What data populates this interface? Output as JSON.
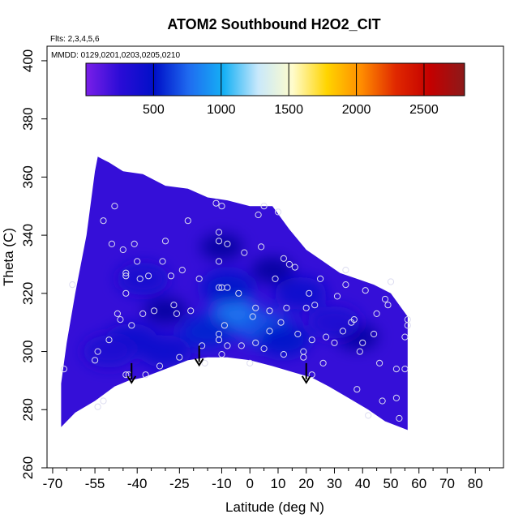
{
  "chart_data": {
    "type": "heatmap",
    "title": "ATOM2 Southbound H2O2_CIT",
    "flights_label": "Flts: 2,3,4,5,6",
    "mmdd_label": "MMDD: 0129,0201,0203,0205,0210",
    "xlabel": "Latitude (deg N)",
    "ylabel": "Theta (C)",
    "xlim": [
      -72,
      90
    ],
    "ylim": [
      260,
      405
    ],
    "x_ticks": [
      -70,
      -55,
      -40,
      -25,
      -10,
      0,
      10,
      20,
      30,
      40,
      50,
      60,
      70,
      80
    ],
    "x_minor_ticks": [
      -65,
      -60,
      -50,
      -45,
      -35,
      -30,
      -20,
      -15,
      -5,
      5,
      15,
      25,
      35,
      45,
      55,
      65,
      75,
      85
    ],
    "y_ticks": [
      260,
      280,
      300,
      320,
      340,
      360,
      380,
      400
    ],
    "colorbar": {
      "min": 0,
      "max": 2800,
      "ticks": [
        500,
        1000,
        1500,
        2000,
        2500
      ],
      "colors": [
        "#7a1fe8",
        "#2a0cd6",
        "#0010c8",
        "#1f6cf0",
        "#15b0f5",
        "#c8e8fb",
        "#fffccc",
        "#ffd400",
        "#ff8c00",
        "#e02800",
        "#c40000",
        "#8c1a1a"
      ]
    },
    "field": {
      "lower_boundary": [
        [
          -67,
          274
        ],
        [
          -62,
          279
        ],
        [
          -55,
          283
        ],
        [
          -48,
          288
        ],
        [
          -43,
          290
        ],
        [
          -38,
          291
        ],
        [
          -30,
          294
        ],
        [
          -22,
          297
        ],
        [
          -15,
          298
        ],
        [
          -8,
          298
        ],
        [
          0,
          297
        ],
        [
          8,
          295
        ],
        [
          15,
          293
        ],
        [
          22,
          291
        ],
        [
          28,
          288
        ],
        [
          35,
          284
        ],
        [
          42,
          280
        ],
        [
          48,
          276
        ],
        [
          56,
          273
        ]
      ],
      "upper_boundary": [
        [
          -67,
          289
        ],
        [
          -65,
          303
        ],
        [
          -62,
          320
        ],
        [
          -58,
          340
        ],
        [
          -55,
          362
        ],
        [
          -54,
          367
        ],
        [
          -50,
          365
        ],
        [
          -45,
          362
        ],
        [
          -38,
          361
        ],
        [
          -30,
          357
        ],
        [
          -22,
          356
        ],
        [
          -15,
          353
        ],
        [
          -8,
          352
        ],
        [
          0,
          350
        ],
        [
          8,
          350
        ],
        [
          14,
          342
        ],
        [
          20,
          335
        ],
        [
          26,
          331
        ],
        [
          32,
          327
        ],
        [
          38,
          325
        ],
        [
          44,
          323
        ],
        [
          50,
          320
        ],
        [
          56,
          312
        ]
      ],
      "background_value": 220,
      "features": [
        {
          "lat": -5,
          "theta": 312,
          "value": 820
        },
        {
          "lat": 5,
          "theta": 308,
          "value": 700
        },
        {
          "lat": -15,
          "theta": 307,
          "value": 560
        },
        {
          "lat": -8,
          "theta": 322,
          "value": 520
        },
        {
          "lat": 12,
          "theta": 304,
          "value": 520
        },
        {
          "lat": -30,
          "theta": 300,
          "value": 430
        },
        {
          "lat": -42,
          "theta": 304,
          "value": 420
        },
        {
          "lat": -38,
          "theta": 325,
          "value": 380
        },
        {
          "lat": 30,
          "theta": 310,
          "value": 330
        },
        {
          "lat": 18,
          "theta": 320,
          "value": 420
        },
        {
          "lat": -50,
          "theta": 300,
          "value": 340
        }
      ],
      "dark_spots": [
        {
          "lat": 38,
          "theta": 305
        },
        {
          "lat": -10,
          "theta": 336
        },
        {
          "lat": -30,
          "theta": 314
        },
        {
          "lat": 8,
          "theta": 328
        }
      ]
    },
    "samples": [
      [
        -66,
        294
      ],
      [
        -63,
        323
      ],
      [
        -55,
        297
      ],
      [
        -54,
        300
      ],
      [
        -54,
        281
      ],
      [
        -52,
        283
      ],
      [
        -52,
        345
      ],
      [
        -50,
        304
      ],
      [
        -49,
        337
      ],
      [
        -48,
        350
      ],
      [
        -47,
        313
      ],
      [
        -46,
        311
      ],
      [
        -45,
        335
      ],
      [
        -44,
        292
      ],
      [
        -44,
        326
      ],
      [
        -44,
        327
      ],
      [
        -44,
        320
      ],
      [
        -43,
        292
      ],
      [
        -42,
        309
      ],
      [
        -41,
        337
      ],
      [
        -40,
        331
      ],
      [
        -39,
        325
      ],
      [
        -38,
        313
      ],
      [
        -37,
        292
      ],
      [
        -36,
        326
      ],
      [
        -34,
        314
      ],
      [
        -32,
        295
      ],
      [
        -31,
        331
      ],
      [
        -30,
        338
      ],
      [
        -28,
        326
      ],
      [
        -27,
        316
      ],
      [
        -26,
        313
      ],
      [
        -25,
        298
      ],
      [
        -24,
        328
      ],
      [
        -22,
        345
      ],
      [
        -21,
        314
      ],
      [
        -18,
        325
      ],
      [
        -17,
        302
      ],
      [
        -16,
        296
      ],
      [
        -12,
        351
      ],
      [
        -11,
        306
      ],
      [
        -11,
        304
      ],
      [
        -11,
        322
      ],
      [
        -11,
        331
      ],
      [
        -11,
        338
      ],
      [
        -11,
        341
      ],
      [
        -10,
        350
      ],
      [
        -10,
        322
      ],
      [
        -10,
        299
      ],
      [
        -9,
        309
      ],
      [
        -8,
        302
      ],
      [
        -8,
        322
      ],
      [
        -8,
        337
      ],
      [
        -4,
        320
      ],
      [
        -3,
        302
      ],
      [
        -2,
        334
      ],
      [
        0,
        296
      ],
      [
        1,
        312
      ],
      [
        2,
        315
      ],
      [
        2,
        303
      ],
      [
        3,
        347
      ],
      [
        4,
        336
      ],
      [
        5,
        350
      ],
      [
        5,
        301
      ],
      [
        7,
        307
      ],
      [
        7,
        314
      ],
      [
        9,
        325
      ],
      [
        10,
        348
      ],
      [
        11,
        310
      ],
      [
        12,
        332
      ],
      [
        12,
        299
      ],
      [
        13,
        315
      ],
      [
        14,
        330
      ],
      [
        16,
        329
      ],
      [
        17,
        306
      ],
      [
        19,
        300
      ],
      [
        19,
        298
      ],
      [
        20,
        315
      ],
      [
        21,
        320
      ],
      [
        22,
        304
      ],
      [
        22,
        292
      ],
      [
        23,
        316
      ],
      [
        25,
        325
      ],
      [
        26,
        296
      ],
      [
        27,
        305
      ],
      [
        30,
        303
      ],
      [
        31,
        319
      ],
      [
        33,
        307
      ],
      [
        34,
        328
      ],
      [
        34,
        323
      ],
      [
        36,
        310
      ],
      [
        37,
        311
      ],
      [
        38,
        287
      ],
      [
        39,
        300
      ],
      [
        40,
        303
      ],
      [
        41,
        321
      ],
      [
        42,
        278
      ],
      [
        44,
        306
      ],
      [
        45,
        313
      ],
      [
        46,
        296
      ],
      [
        47,
        283
      ],
      [
        48,
        318
      ],
      [
        49,
        316
      ],
      [
        50,
        324
      ],
      [
        52,
        294
      ],
      [
        52,
        284
      ],
      [
        53,
        277
      ],
      [
        55,
        294
      ],
      [
        55,
        305
      ],
      [
        56,
        311
      ],
      [
        56,
        309
      ]
    ],
    "arrows": [
      {
        "lat": -42,
        "theta": 296
      },
      {
        "lat": -18,
        "theta": 302
      },
      {
        "lat": 20,
        "theta": 296
      }
    ]
  }
}
